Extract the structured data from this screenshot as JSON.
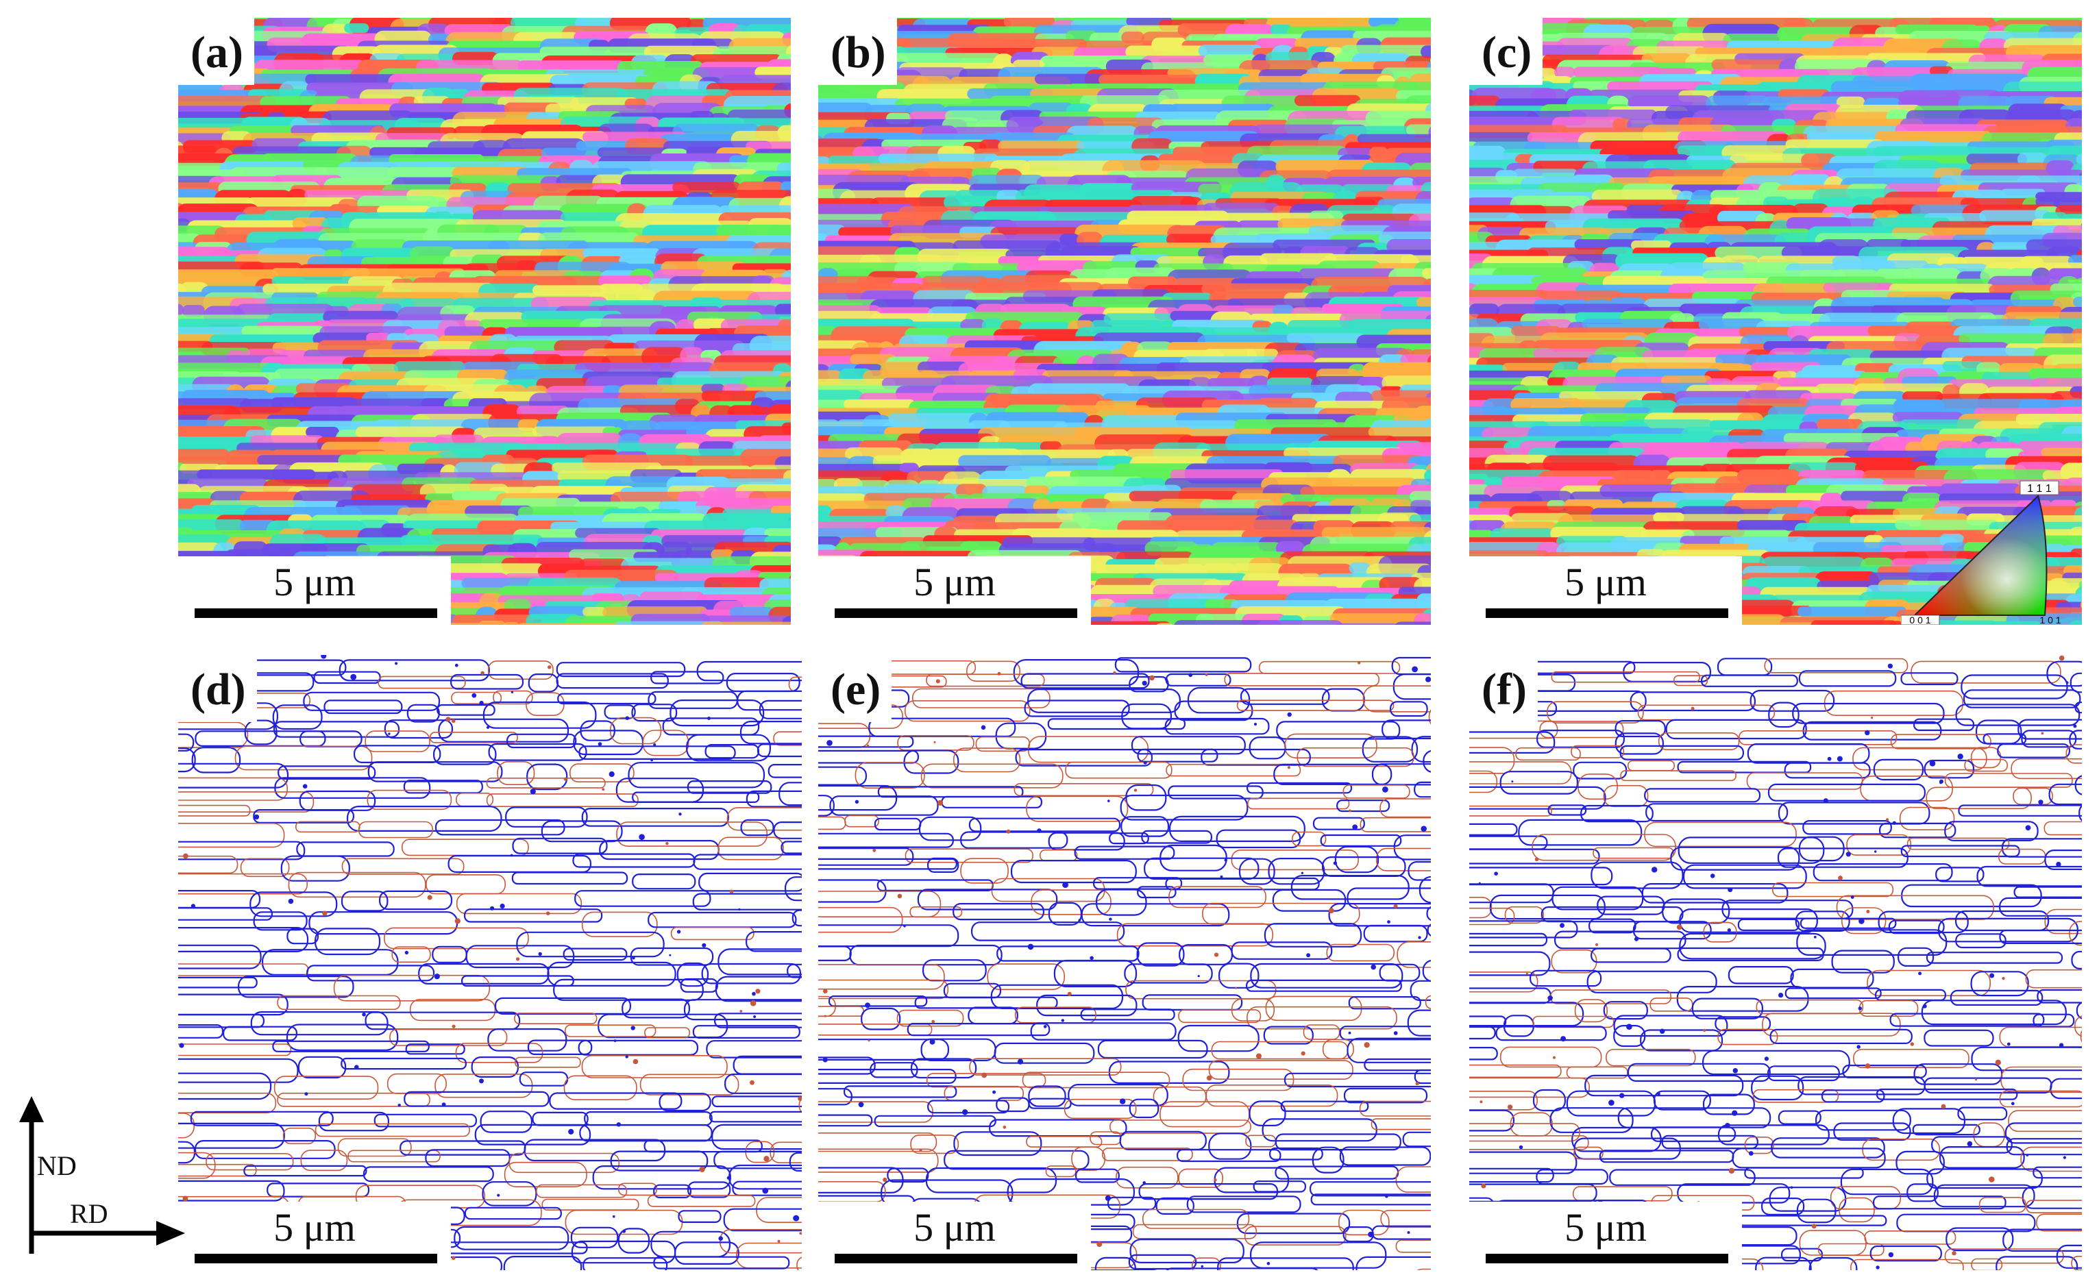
{
  "panels": [
    {
      "id": "a",
      "label": "(a)",
      "kind": "ipf-map"
    },
    {
      "id": "b",
      "label": "(b)",
      "kind": "ipf-map"
    },
    {
      "id": "c",
      "label": "(c)",
      "kind": "ipf-map"
    },
    {
      "id": "d",
      "label": "(d)",
      "kind": "boundary-map"
    },
    {
      "id": "e",
      "label": "(e)",
      "kind": "boundary-map"
    },
    {
      "id": "f",
      "label": "(f)",
      "kind": "boundary-map"
    }
  ],
  "scale_bar": {
    "text": "5 μm"
  },
  "ipf_legend": {
    "corner_111": "1 1 1",
    "corner_001": "0 0 1",
    "corner_101": "1 0 1"
  },
  "axes": {
    "vertical": "ND",
    "horizontal": "RD"
  },
  "colors": {
    "high_angle_boundary": "#2020d8",
    "low_angle_boundary": "#c8583a",
    "ipf_palette": [
      "#5ef05a",
      "#34e2c6",
      "#ff2a2a",
      "#ff6a4a",
      "#9a5cf0",
      "#6a4ae8",
      "#6ad8ff",
      "#ff6ad8",
      "#f0f060",
      "#8aff8a",
      "#50a8ff",
      "#ffb040"
    ]
  }
}
